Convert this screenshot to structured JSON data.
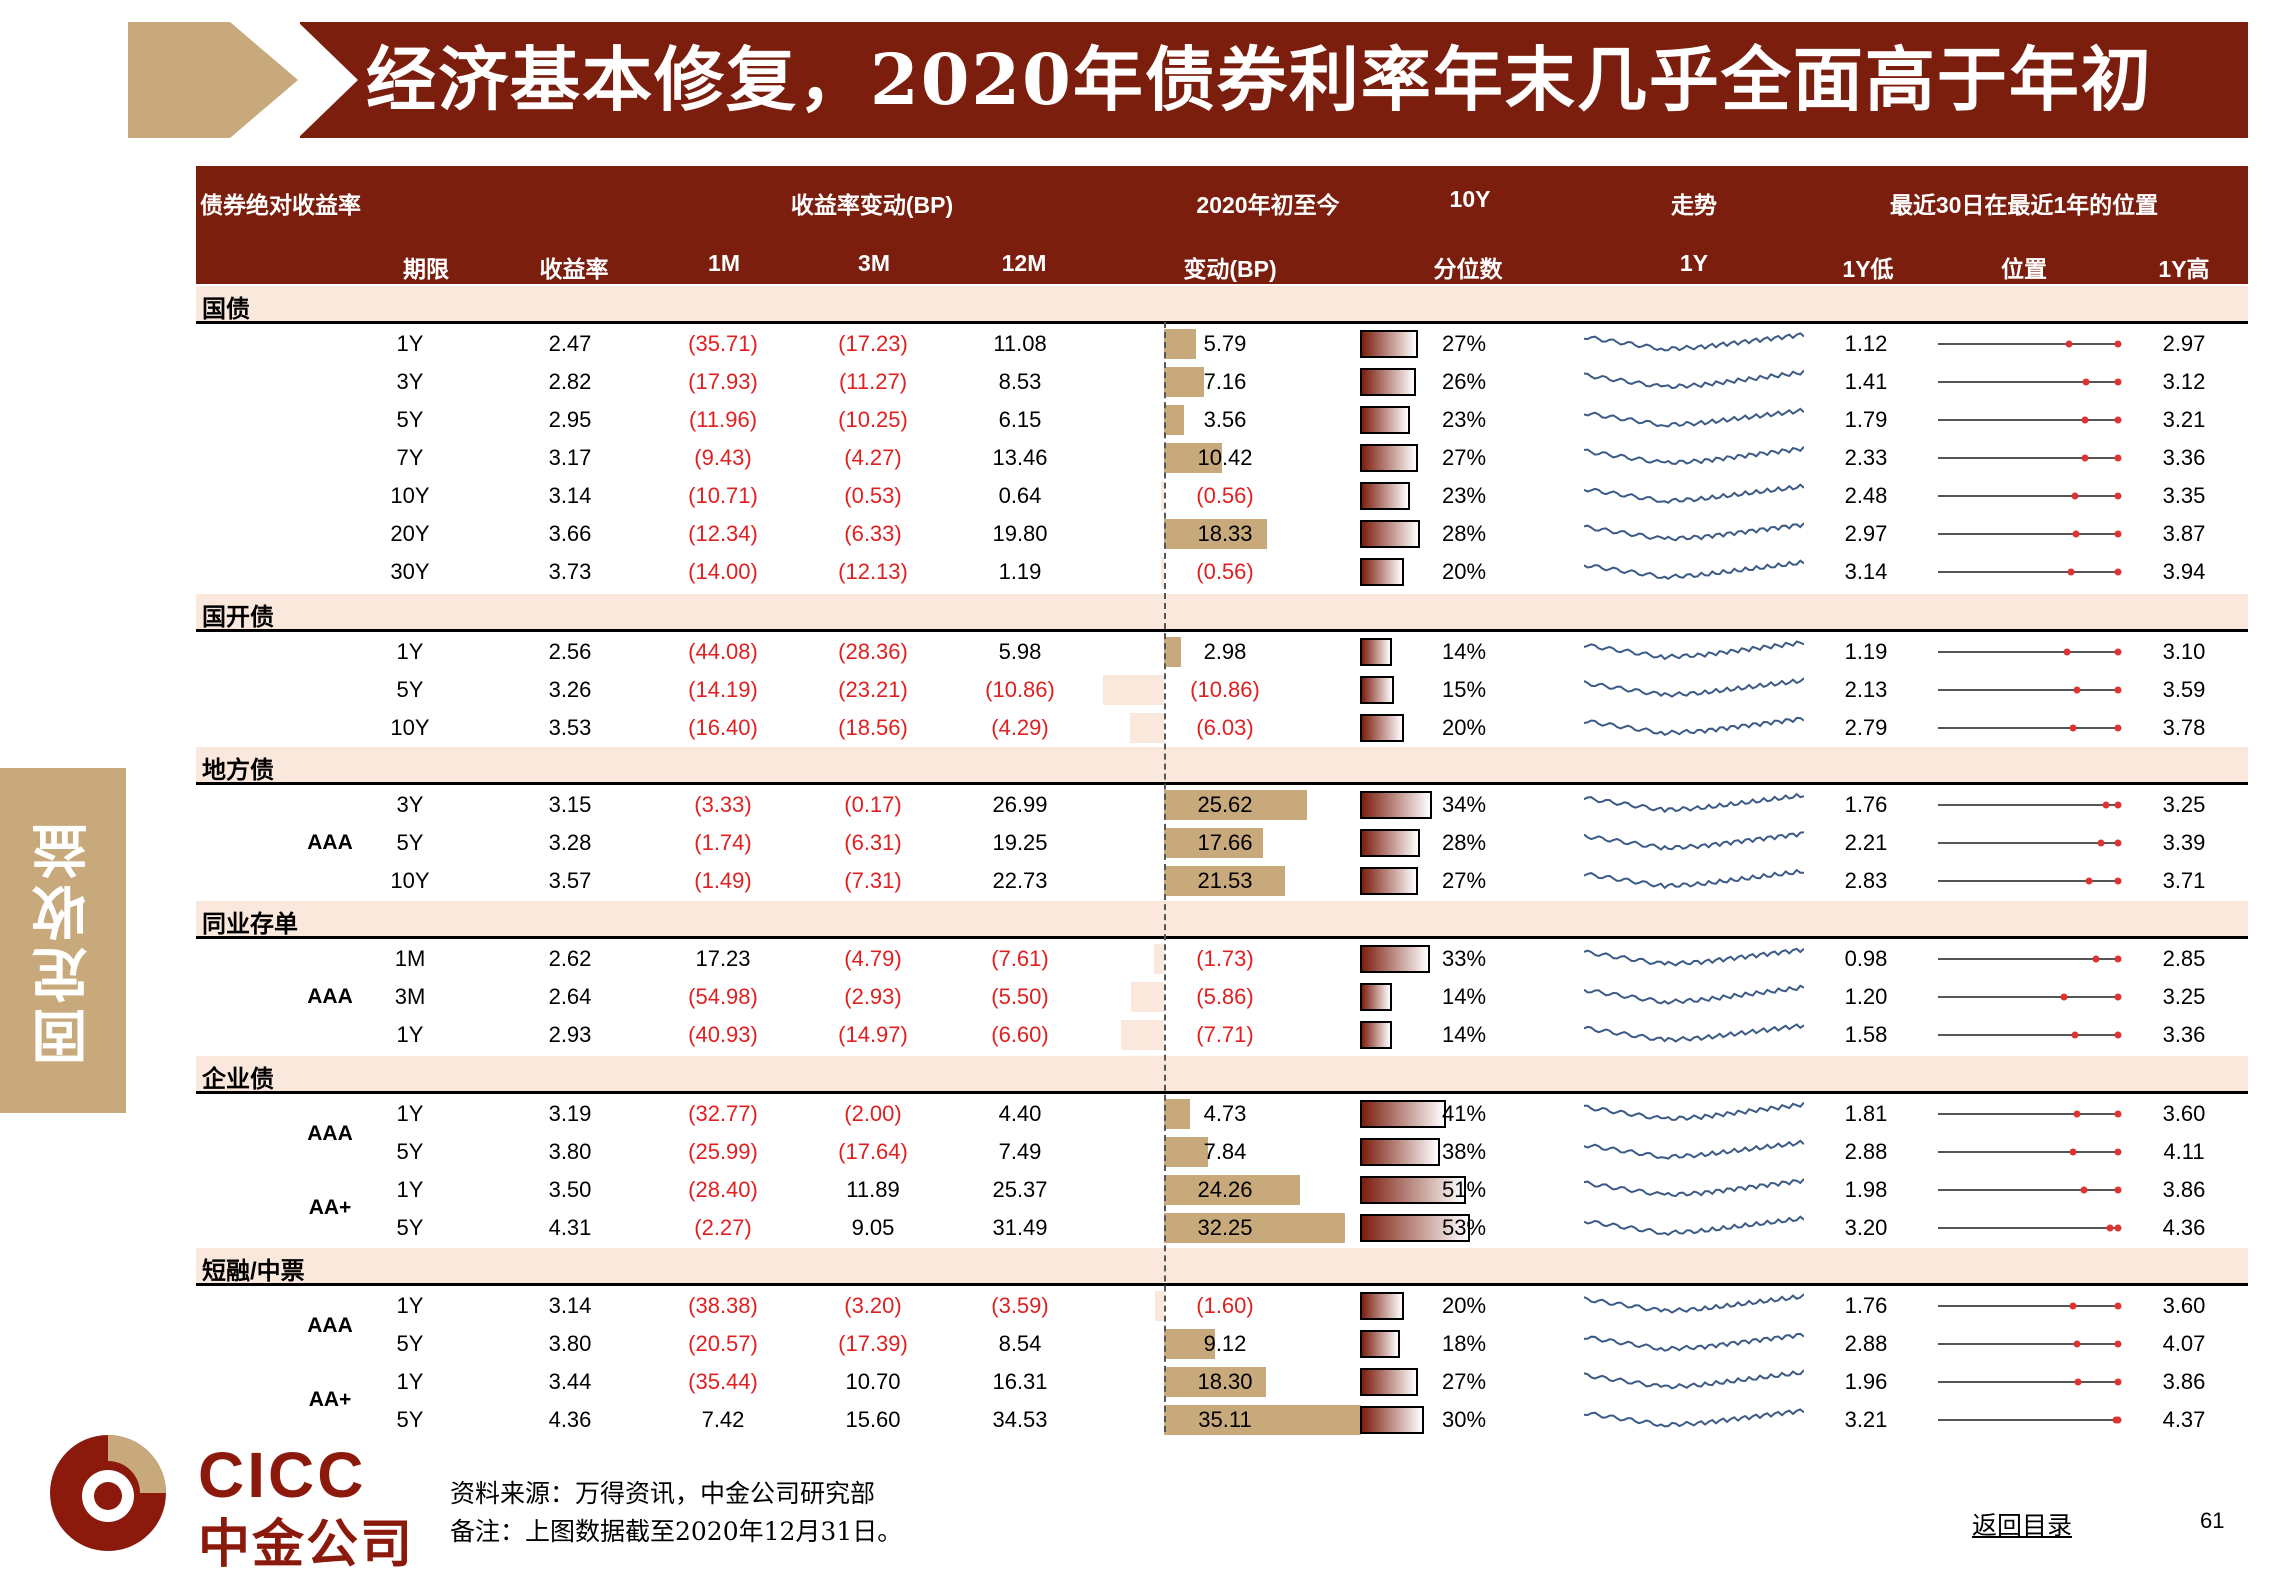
{
  "title": "经济基本修复，2020年债券利率年末几乎全面高于年初",
  "side_tab": "固定收益",
  "header": {
    "row1": {
      "bond_yield": "债券绝对收益率",
      "change": "收益率变动(BP)",
      "ytd": "2020年初至今",
      "ten_y": "10Y",
      "trend": "走势",
      "position30": "最近30日在最近1年的位置"
    },
    "row2": {
      "tenor": "期限",
      "yield": "收益率",
      "m1": "1M",
      "m3": "3M",
      "m12": "12M",
      "ytd_change": "变动(BP)",
      "percentile": "分位数",
      "trend_1y": "1Y",
      "low": "1Y低",
      "pos": "位置",
      "high": "1Y高"
    }
  },
  "sections": [
    {
      "name": "国债",
      "rows": [
        {
          "group": "",
          "tenor": "1Y",
          "yield": "2.47",
          "m1": "(35.71)",
          "m3": "(17.23)",
          "m12": "11.08",
          "ytd": "5.79",
          "ytd_value": 5.79,
          "pct": "27%",
          "pct_value": 27,
          "low": "1.12",
          "high": "2.97",
          "pos_value": 2.47
        },
        {
          "group": "",
          "tenor": "3Y",
          "yield": "2.82",
          "m1": "(17.93)",
          "m3": "(11.27)",
          "m12": "8.53",
          "ytd": "7.16",
          "ytd_value": 7.16,
          "pct": "26%",
          "pct_value": 26,
          "low": "1.41",
          "high": "3.12",
          "pos_value": 2.82
        },
        {
          "group": "",
          "tenor": "5Y",
          "yield": "2.95",
          "m1": "(11.96)",
          "m3": "(10.25)",
          "m12": "6.15",
          "ytd": "3.56",
          "ytd_value": 3.56,
          "pct": "23%",
          "pct_value": 23,
          "low": "1.79",
          "high": "3.21",
          "pos_value": 2.95
        },
        {
          "group": "",
          "tenor": "7Y",
          "yield": "3.17",
          "m1": "(9.43)",
          "m3": "(4.27)",
          "m12": "13.46",
          "ytd": "10.42",
          "ytd_value": 10.42,
          "pct": "27%",
          "pct_value": 27,
          "low": "2.33",
          "high": "3.36",
          "pos_value": 3.17
        },
        {
          "group": "",
          "tenor": "10Y",
          "yield": "3.14",
          "m1": "(10.71)",
          "m3": "(0.53)",
          "m12": "0.64",
          "ytd": "(0.56)",
          "ytd_value": -0.56,
          "pct": "23%",
          "pct_value": 23,
          "low": "2.48",
          "high": "3.35",
          "pos_value": 3.14
        },
        {
          "group": "",
          "tenor": "20Y",
          "yield": "3.66",
          "m1": "(12.34)",
          "m3": "(6.33)",
          "m12": "19.80",
          "ytd": "18.33",
          "ytd_value": 18.33,
          "pct": "28%",
          "pct_value": 28,
          "low": "2.97",
          "high": "3.87",
          "pos_value": 3.66
        },
        {
          "group": "",
          "tenor": "30Y",
          "yield": "3.73",
          "m1": "(14.00)",
          "m3": "(12.13)",
          "m12": "1.19",
          "ytd": "(0.56)",
          "ytd_value": -0.56,
          "pct": "20%",
          "pct_value": 20,
          "low": "3.14",
          "high": "3.94",
          "pos_value": 3.73
        }
      ]
    },
    {
      "name": "国开债",
      "rows": [
        {
          "group": "",
          "tenor": "1Y",
          "yield": "2.56",
          "m1": "(44.08)",
          "m3": "(28.36)",
          "m12": "5.98",
          "ytd": "2.98",
          "ytd_value": 2.98,
          "pct": "14%",
          "pct_value": 14,
          "low": "1.19",
          "high": "3.10",
          "pos_value": 2.56
        },
        {
          "group": "",
          "tenor": "5Y",
          "yield": "3.26",
          "m1": "(14.19)",
          "m3": "(23.21)",
          "m12": "(10.86)",
          "ytd": "(10.86)",
          "ytd_value": -10.86,
          "pct": "15%",
          "pct_value": 15,
          "low": "2.13",
          "high": "3.59",
          "pos_value": 3.26
        },
        {
          "group": "",
          "tenor": "10Y",
          "yield": "3.53",
          "m1": "(16.40)",
          "m3": "(18.56)",
          "m12": "(4.29)",
          "ytd": "(6.03)",
          "ytd_value": -6.03,
          "pct": "20%",
          "pct_value": 20,
          "low": "2.79",
          "high": "3.78",
          "pos_value": 3.53
        }
      ]
    },
    {
      "name": "地方债",
      "rows": [
        {
          "group": "",
          "tenor": "3Y",
          "yield": "3.15",
          "m1": "(3.33)",
          "m3": "(0.17)",
          "m12": "26.99",
          "ytd": "25.62",
          "ytd_value": 25.62,
          "pct": "34%",
          "pct_value": 34,
          "low": "1.76",
          "high": "3.25",
          "pos_value": 3.15
        },
        {
          "group": "AAA",
          "tenor": "5Y",
          "yield": "3.28",
          "m1": "(1.74)",
          "m3": "(6.31)",
          "m12": "19.25",
          "ytd": "17.66",
          "ytd_value": 17.66,
          "pct": "28%",
          "pct_value": 28,
          "low": "2.21",
          "high": "3.39",
          "pos_value": 3.28
        },
        {
          "group": "",
          "tenor": "10Y",
          "yield": "3.57",
          "m1": "(1.49)",
          "m3": "(7.31)",
          "m12": "22.73",
          "ytd": "21.53",
          "ytd_value": 21.53,
          "pct": "27%",
          "pct_value": 27,
          "low": "2.83",
          "high": "3.71",
          "pos_value": 3.57
        }
      ]
    },
    {
      "name": "同业存单",
      "rows": [
        {
          "group": "",
          "tenor": "1M",
          "yield": "2.62",
          "m1": "17.23",
          "m3": "(4.79)",
          "m12": "(7.61)",
          "ytd": "(1.73)",
          "ytd_value": -1.73,
          "pct": "33%",
          "pct_value": 33,
          "low": "0.98",
          "high": "2.85",
          "pos_value": 2.62
        },
        {
          "group": "AAA",
          "tenor": "3M",
          "yield": "2.64",
          "m1": "(54.98)",
          "m3": "(2.93)",
          "m12": "(5.50)",
          "ytd": "(5.86)",
          "ytd_value": -5.86,
          "pct": "14%",
          "pct_value": 14,
          "low": "1.20",
          "high": "3.25",
          "pos_value": 2.64
        },
        {
          "group": "",
          "tenor": "1Y",
          "yield": "2.93",
          "m1": "(40.93)",
          "m3": "(14.97)",
          "m12": "(6.60)",
          "ytd": "(7.71)",
          "ytd_value": -7.71,
          "pct": "14%",
          "pct_value": 14,
          "low": "1.58",
          "high": "3.36",
          "pos_value": 2.93
        }
      ]
    },
    {
      "name": "企业债",
      "rows": [
        {
          "group": "AAA",
          "tenor": "1Y",
          "yield": "3.19",
          "m1": "(32.77)",
          "m3": "(2.00)",
          "m12": "4.40",
          "ytd": "4.73",
          "ytd_value": 4.73,
          "pct": "41%",
          "pct_value": 41,
          "low": "1.81",
          "high": "3.60",
          "pos_value": 3.19
        },
        {
          "group": "",
          "tenor": "5Y",
          "yield": "3.80",
          "m1": "(25.99)",
          "m3": "(17.64)",
          "m12": "7.49",
          "ytd": "7.84",
          "ytd_value": 7.84,
          "pct": "38%",
          "pct_value": 38,
          "low": "2.88",
          "high": "4.11",
          "pos_value": 3.8
        },
        {
          "group": "AA+",
          "tenor": "1Y",
          "yield": "3.50",
          "m1": "(28.40)",
          "m3": "11.89",
          "m12": "25.37",
          "ytd": "24.26",
          "ytd_value": 24.26,
          "pct": "51%",
          "pct_value": 51,
          "low": "1.98",
          "high": "3.86",
          "pos_value": 3.5
        },
        {
          "group": "",
          "tenor": "5Y",
          "yield": "4.31",
          "m1": "(2.27)",
          "m3": "9.05",
          "m12": "31.49",
          "ytd": "32.25",
          "ytd_value": 32.25,
          "pct": "53%",
          "pct_value": 53,
          "low": "3.20",
          "high": "4.36",
          "pos_value": 4.31
        }
      ]
    },
    {
      "name": "短融/中票",
      "rows": [
        {
          "group": "AAA",
          "tenor": "1Y",
          "yield": "3.14",
          "m1": "(38.38)",
          "m3": "(3.20)",
          "m12": "(3.59)",
          "ytd": "(1.60)",
          "ytd_value": -1.6,
          "pct": "20%",
          "pct_value": 20,
          "low": "1.76",
          "high": "3.60",
          "pos_value": 3.14
        },
        {
          "group": "",
          "tenor": "5Y",
          "yield": "3.80",
          "m1": "(20.57)",
          "m3": "(17.39)",
          "m12": "8.54",
          "ytd": "9.12",
          "ytd_value": 9.12,
          "pct": "18%",
          "pct_value": 18,
          "low": "2.88",
          "high": "4.07",
          "pos_value": 3.8
        },
        {
          "group": "AA+",
          "tenor": "1Y",
          "yield": "3.44",
          "m1": "(35.44)",
          "m3": "10.70",
          "m12": "16.31",
          "ytd": "18.30",
          "ytd_value": 18.3,
          "pct": "27%",
          "pct_value": 27,
          "low": "1.96",
          "high": "3.86",
          "pos_value": 3.44
        },
        {
          "group": "",
          "tenor": "5Y",
          "yield": "4.36",
          "m1": "7.42",
          "m3": "15.60",
          "m12": "34.53",
          "ytd": "35.11",
          "ytd_value": 35.11,
          "pct": "30%",
          "pct_value": 30,
          "low": "3.21",
          "high": "4.37",
          "pos_value": 4.36
        }
      ]
    }
  ],
  "footer": {
    "logo_en": "CICC",
    "logo_cn": "中金公司",
    "source": "资料来源：万得资讯，中金公司研究部",
    "note": "备注：上图数据截至2020年12月31日。",
    "back_link": "返回目录",
    "page_number": "61"
  },
  "colors": {
    "brand": "#7b1e0e",
    "accent": "#c8a97c",
    "negative": "#e02020",
    "section_bg": "#fbe8dc"
  }
}
